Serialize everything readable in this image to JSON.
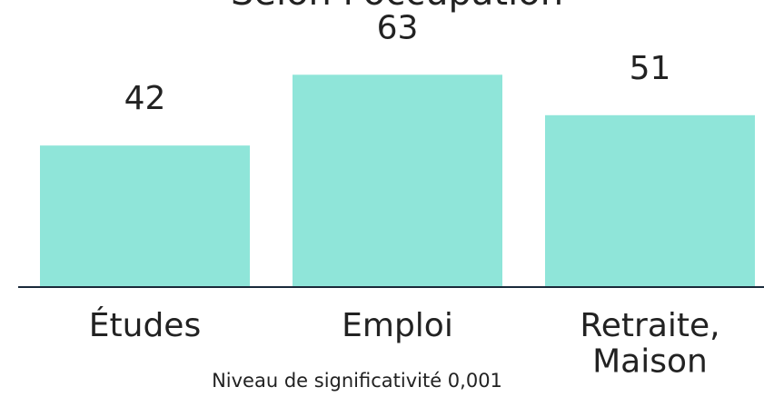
{
  "chart_data": {
    "type": "bar",
    "title": "Selon l'occupation",
    "categories": [
      "Études",
      "Emploi",
      "Retraite,\nMaison"
    ],
    "values": [
      42,
      63,
      51
    ],
    "color": "#8fe5d9",
    "ylim": [
      0,
      80
    ],
    "note": "Niveau de significativité 0,001"
  }
}
